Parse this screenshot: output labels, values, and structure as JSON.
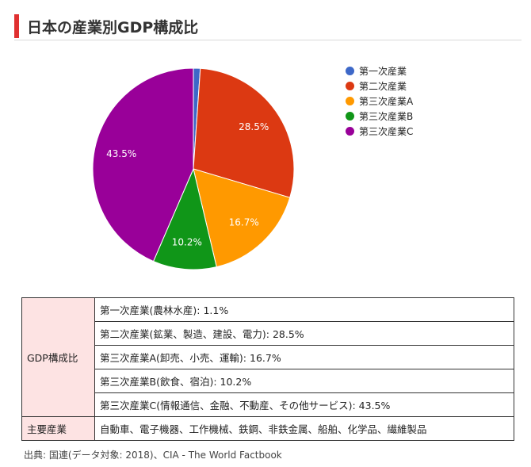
{
  "title": "日本の産業別GDP構成比",
  "colors": {
    "accent": "#e03030",
    "primary": "#3d68c8",
    "secondary": "#dc3912",
    "tertiaryA": "#ff9900",
    "tertiaryB": "#109618",
    "tertiaryC": "#990099"
  },
  "chart_data": {
    "type": "pie",
    "slices": [
      {
        "name": "第一次産業",
        "value": 1.1,
        "label": "",
        "color": "#3d68c8"
      },
      {
        "name": "第二次産業",
        "value": 28.5,
        "label": "28.5%",
        "color": "#dc3912"
      },
      {
        "name": "第三次産業A",
        "value": 16.7,
        "label": "16.7%",
        "color": "#ff9900"
      },
      {
        "name": "第三次産業B",
        "value": 10.2,
        "label": "10.2%",
        "color": "#109618"
      },
      {
        "name": "第三次産業C",
        "value": 43.5,
        "label": "43.5%",
        "color": "#990099"
      }
    ],
    "legend_position": "right"
  },
  "table": {
    "gdp_header": "GDP構成比",
    "rows": [
      "第一次産業(農林水産): 1.1%",
      "第二次産業(鉱業、製造、建設、電力): 28.5%",
      "第三次産業A(卸売、小売、運輸): 16.7%",
      "第三次産業B(飲食、宿泊): 10.2%",
      "第三次産業C(情報通信、金融、不動産、その他サービス): 43.5%"
    ],
    "industries_header": "主要産業",
    "industries_value": "自動車、電子機器、工作機械、鉄鋼、非鉄金属、船舶、化学品、繊維製品"
  },
  "source": "出典: 国連(データ対象: 2018)、CIA - The World Factbook"
}
